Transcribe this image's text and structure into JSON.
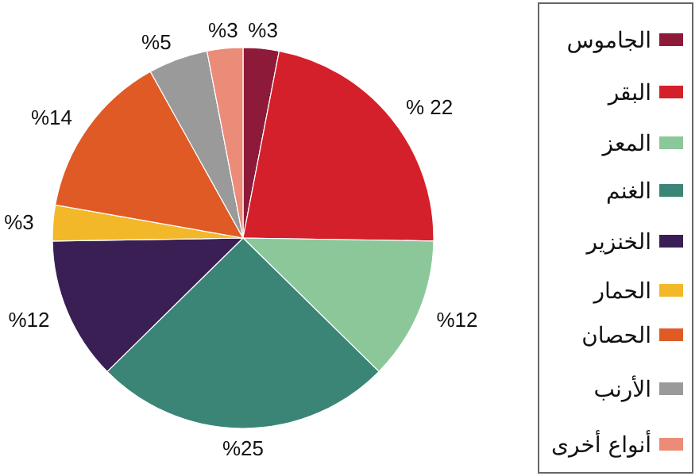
{
  "chart_data": {
    "type": "pie",
    "categories": [
      "الجاموس",
      "البقر",
      "المعز",
      "الغنم",
      "الخنزير",
      "الحمار",
      "الحصان",
      "الأرنب",
      "أنواع أخرى"
    ],
    "values": [
      3,
      22,
      12,
      25,
      12,
      3,
      14,
      5,
      3
    ],
    "value_labels": [
      "%3",
      "% 22",
      "%12",
      "%25",
      "%12",
      "%3",
      "%14",
      "%5",
      "%3"
    ],
    "colors": [
      "#8e1a3a",
      "#d4202a",
      "#8cc79a",
      "#3b8577",
      "#3a1f55",
      "#f2b82a",
      "#e05a26",
      "#9a9a9a",
      "#ea8c78"
    ],
    "legend": "right"
  }
}
